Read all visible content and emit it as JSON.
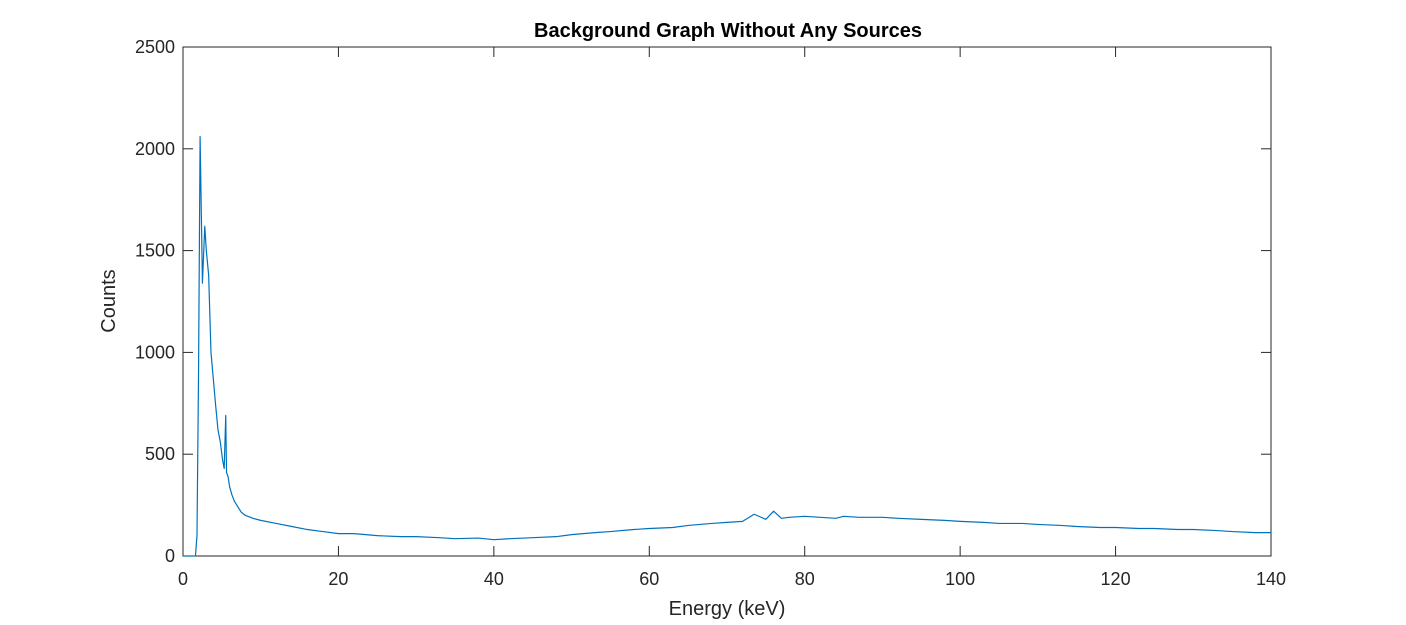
{
  "chart_data": {
    "type": "line",
    "title": "Background Graph Without Any Sources",
    "xlabel": "Energy (keV)",
    "ylabel": "Counts",
    "xlim": [
      0,
      140
    ],
    "ylim": [
      0,
      2500
    ],
    "xticks": [
      0,
      20,
      40,
      60,
      80,
      100,
      120,
      140
    ],
    "yticks": [
      0,
      500,
      1000,
      1500,
      2000,
      2500
    ],
    "grid": false,
    "series": [
      {
        "color": "#0072BD",
        "x": [
          0,
          1.5,
          1.6,
          1.8,
          2.0,
          2.2,
          2.5,
          2.8,
          3.0,
          3.3,
          3.6,
          3.9,
          4.2,
          4.5,
          4.8,
          5.1,
          5.3,
          5.5,
          5.6,
          5.8,
          6.0,
          6.3,
          6.6,
          7.0,
          7.5,
          8.0,
          9.0,
          10,
          12,
          14,
          16,
          18,
          20,
          22,
          25,
          28,
          30,
          33,
          35,
          38,
          40,
          42,
          45,
          48,
          50,
          53,
          55,
          58,
          60,
          63,
          65,
          68,
          70,
          72,
          73.5,
          75,
          76,
          77,
          78,
          80,
          82,
          84,
          85,
          87,
          90,
          92,
          95,
          98,
          100,
          103,
          105,
          108,
          110,
          113,
          115,
          118,
          120,
          123,
          125,
          128,
          130,
          133,
          135,
          138,
          140
        ],
        "y": [
          0,
          0,
          0,
          100,
          900,
          2060,
          1340,
          1620,
          1500,
          1380,
          1000,
          870,
          740,
          620,
          560,
          470,
          430,
          690,
          410,
          390,
          340,
          300,
          270,
          245,
          215,
          200,
          185,
          175,
          160,
          145,
          130,
          120,
          110,
          110,
          100,
          95,
          95,
          90,
          85,
          88,
          80,
          85,
          90,
          95,
          105,
          115,
          120,
          130,
          135,
          140,
          150,
          160,
          165,
          170,
          205,
          180,
          220,
          185,
          190,
          195,
          190,
          185,
          195,
          190,
          190,
          185,
          180,
          175,
          170,
          165,
          160,
          160,
          155,
          150,
          145,
          140,
          140,
          135,
          135,
          130,
          130,
          125,
          120,
          115,
          115
        ]
      }
    ]
  }
}
